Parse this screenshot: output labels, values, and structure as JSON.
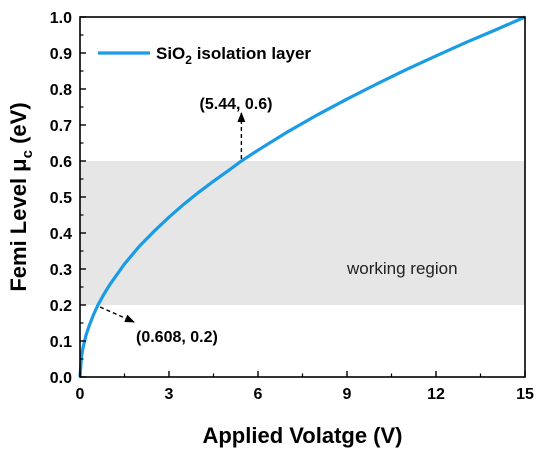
{
  "chart_data": {
    "type": "line",
    "title": "",
    "xlabel": "Applied Volatge (V)",
    "ylabel_main": "Femi Level μ",
    "ylabel_sub": "c",
    "ylabel_unit": " (eV)",
    "xlim": [
      0,
      15
    ],
    "ylim": [
      0,
      1.0
    ],
    "x_ticks": [
      "0",
      "3",
      "6",
      "9",
      "12",
      "15"
    ],
    "y_ticks": [
      "0.0",
      "0.1",
      "0.2",
      "0.3",
      "0.4",
      "0.5",
      "0.6",
      "0.7",
      "0.8",
      "0.9",
      "1.0"
    ],
    "grid": false,
    "legend_position": "top-left",
    "series": [
      {
        "name_main": "SiO",
        "name_sub": "2",
        "name_rest": " isolation layer",
        "color": "#1a9be6",
        "x": [
          0,
          0.05,
          0.1,
          0.2,
          0.3,
          0.45,
          0.608,
          0.8,
          1,
          1.5,
          2,
          2.5,
          3,
          3.5,
          4,
          4.5,
          5,
          5.44,
          6,
          7,
          8,
          9,
          10,
          11,
          12,
          13,
          14,
          15
        ],
        "y": [
          0,
          0.057,
          0.081,
          0.115,
          0.14,
          0.172,
          0.2,
          0.229,
          0.256,
          0.314,
          0.363,
          0.405,
          0.444,
          0.48,
          0.513,
          0.544,
          0.573,
          0.6,
          0.63,
          0.681,
          0.728,
          0.772,
          0.814,
          0.854,
          0.892,
          0.929,
          0.964,
          1.0
        ]
      }
    ],
    "shaded_region": {
      "y_range": [
        0.2,
        0.6
      ],
      "label": "working region",
      "color": "#e6e6e6"
    },
    "annotations": [
      {
        "text": "(5.44, 0.6)",
        "x": 5.44,
        "y": 0.6
      },
      {
        "text": "(0.608, 0.2)",
        "x": 0.608,
        "y": 0.2
      }
    ]
  }
}
